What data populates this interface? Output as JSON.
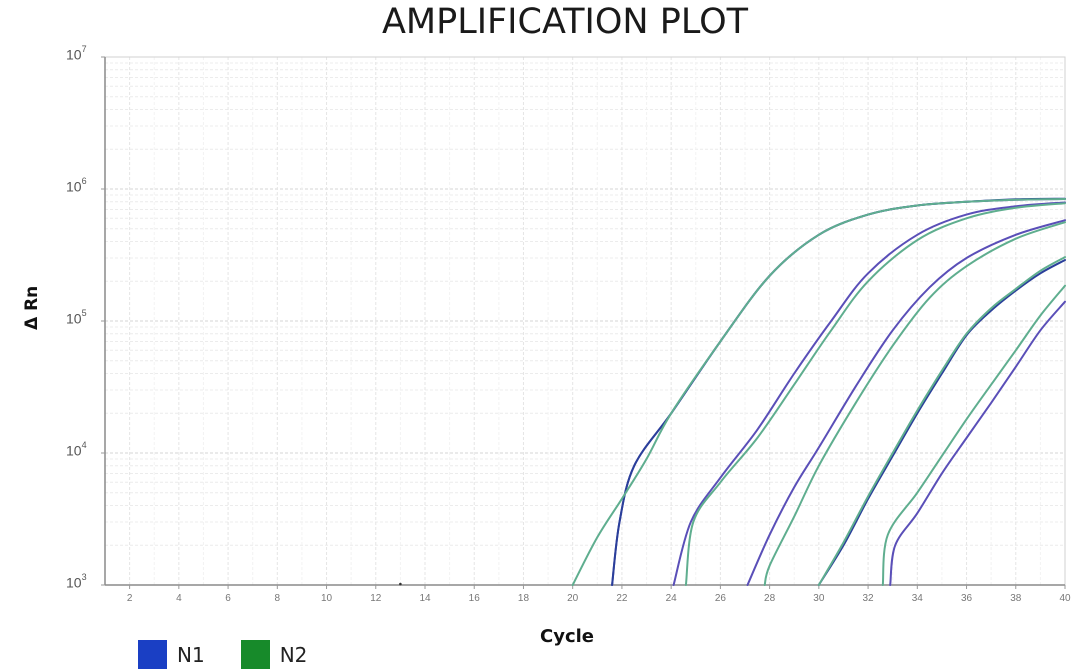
{
  "chart_data": {
    "type": "line",
    "title": "AMPLIFICATION PLOT",
    "xlabel": "Cycle",
    "ylabel": "Δ Rn",
    "xlim": [
      1,
      40
    ],
    "ylim": [
      1000,
      10000000
    ],
    "yscale": "log",
    "grid": true,
    "x_ticks": [
      2,
      4,
      6,
      8,
      10,
      12,
      14,
      16,
      18,
      20,
      22,
      24,
      26,
      28,
      30,
      32,
      34,
      36,
      38,
      40
    ],
    "y_ticks": [
      {
        "base": "10",
        "exp": "7",
        "value": 10000000
      },
      {
        "base": "10",
        "exp": "6",
        "value": 1000000
      },
      {
        "base": "10",
        "exp": "5",
        "value": 100000
      },
      {
        "base": "10",
        "exp": "4",
        "value": 10000
      },
      {
        "base": "10",
        "exp": "3",
        "value": 1000
      }
    ],
    "legend": [
      {
        "name": "N1",
        "color": "#1a3fc4"
      },
      {
        "name": "N2",
        "color": "#178a2a"
      }
    ],
    "series": [
      {
        "name": "N1",
        "group": "N1",
        "color": "#5a4fb8",
        "points": [
          [
            21.6,
            1000
          ],
          [
            21.9,
            3000
          ],
          [
            22.5,
            8000
          ],
          [
            24,
            20000
          ],
          [
            26,
            70000
          ],
          [
            28,
            220000
          ],
          [
            30,
            450000
          ],
          [
            32,
            640000
          ],
          [
            34,
            750000
          ],
          [
            36,
            800000
          ],
          [
            38,
            830000
          ],
          [
            40,
            840000
          ]
        ]
      },
      {
        "name": "N1",
        "group": "N1",
        "color": "#2a3f9a",
        "points": [
          [
            21.6,
            1000
          ],
          [
            21.9,
            3000
          ],
          [
            22.5,
            8000
          ],
          [
            24,
            20000
          ],
          [
            26,
            70000
          ],
          [
            28,
            220000
          ],
          [
            30,
            450000
          ],
          [
            32,
            640000
          ],
          [
            34,
            750000
          ],
          [
            36,
            800000
          ],
          [
            38,
            835000
          ],
          [
            40,
            845000
          ]
        ]
      },
      {
        "name": "N2",
        "group": "N2",
        "color": "#5fae8f",
        "points": [
          [
            20,
            1000
          ],
          [
            21,
            2300
          ],
          [
            22,
            4500
          ],
          [
            23,
            9000
          ],
          [
            24,
            20000
          ],
          [
            26,
            70000
          ],
          [
            28,
            220000
          ],
          [
            30,
            450000
          ],
          [
            32,
            640000
          ],
          [
            34,
            750000
          ],
          [
            36,
            800000
          ],
          [
            38,
            830000
          ],
          [
            40,
            840000
          ]
        ]
      },
      {
        "name": "N1",
        "group": "N1",
        "color": "#5a4fb8",
        "points": [
          [
            24.1,
            1000
          ],
          [
            24.8,
            3000
          ],
          [
            26,
            6500
          ],
          [
            27.5,
            15000
          ],
          [
            29,
            40000
          ],
          [
            30.5,
            100000
          ],
          [
            32,
            230000
          ],
          [
            34,
            450000
          ],
          [
            36,
            640000
          ],
          [
            38,
            740000
          ],
          [
            40,
            790000
          ]
        ]
      },
      {
        "name": "N2",
        "group": "N2",
        "color": "#5fae8f",
        "points": [
          [
            24.6,
            1000
          ],
          [
            24.9,
            3000
          ],
          [
            26,
            6000
          ],
          [
            27.5,
            13000
          ],
          [
            29,
            33000
          ],
          [
            30.5,
            85000
          ],
          [
            32,
            200000
          ],
          [
            34,
            410000
          ],
          [
            36,
            600000
          ],
          [
            38,
            720000
          ],
          [
            40,
            780000
          ]
        ]
      },
      {
        "name": "N1",
        "group": "N1",
        "color": "#5a4fb8",
        "points": [
          [
            27.1,
            1000
          ],
          [
            28,
            2400
          ],
          [
            29,
            5500
          ],
          [
            30,
            11000
          ],
          [
            31.5,
            32000
          ],
          [
            33,
            85000
          ],
          [
            34.5,
            180000
          ],
          [
            36,
            300000
          ],
          [
            38,
            450000
          ],
          [
            40,
            580000
          ]
        ]
      },
      {
        "name": "N2",
        "group": "N2",
        "color": "#5fae8f",
        "points": [
          [
            27.8,
            1000
          ],
          [
            28,
            1400
          ],
          [
            29,
            3300
          ],
          [
            30,
            8000
          ],
          [
            31.5,
            24000
          ],
          [
            33,
            65000
          ],
          [
            34.5,
            150000
          ],
          [
            36,
            260000
          ],
          [
            38,
            420000
          ],
          [
            40,
            560000
          ]
        ]
      },
      {
        "name": "N1",
        "group": "N1",
        "color": "#2a3f9a",
        "points": [
          [
            30,
            1000
          ],
          [
            31,
            2000
          ],
          [
            32,
            4500
          ],
          [
            33,
            9500
          ],
          [
            34,
            20000
          ],
          [
            35,
            40000
          ],
          [
            36,
            78000
          ],
          [
            37,
            120000
          ],
          [
            38,
            170000
          ],
          [
            39,
            230000
          ],
          [
            40,
            290000
          ]
        ]
      },
      {
        "name": "N2",
        "group": "N2",
        "color": "#5fae8f",
        "points": [
          [
            30,
            1000
          ],
          [
            31,
            2100
          ],
          [
            32,
            4700
          ],
          [
            33,
            10000
          ],
          [
            34,
            21000
          ],
          [
            35,
            42000
          ],
          [
            36,
            80000
          ],
          [
            37,
            125000
          ],
          [
            38,
            175000
          ],
          [
            39,
            240000
          ],
          [
            40,
            305000
          ]
        ]
      },
      {
        "name": "N2",
        "group": "N2",
        "color": "#5fae8f",
        "points": [
          [
            32.6,
            1000
          ],
          [
            32.8,
            2400
          ],
          [
            34,
            5000
          ],
          [
            35,
            9500
          ],
          [
            36,
            18000
          ],
          [
            37,
            33000
          ],
          [
            38,
            60000
          ],
          [
            39,
            110000
          ],
          [
            40,
            185000
          ]
        ]
      },
      {
        "name": "N1",
        "group": "N1",
        "color": "#5a4fb8",
        "points": [
          [
            32.9,
            1000
          ],
          [
            33.1,
            2000
          ],
          [
            34,
            3500
          ],
          [
            35,
            7000
          ],
          [
            36,
            13000
          ],
          [
            37,
            24000
          ],
          [
            38,
            45000
          ],
          [
            39,
            85000
          ],
          [
            40,
            140000
          ]
        ]
      }
    ]
  },
  "axis_text": {
    "xlabel": "Cycle",
    "ylabel": "Δ Rn"
  },
  "legend": {
    "n1_label": "N1",
    "n2_label": "N2",
    "n1_color": "#1a3fc4",
    "n2_color": "#178a2a"
  },
  "title": "AMPLIFICATION PLOT"
}
